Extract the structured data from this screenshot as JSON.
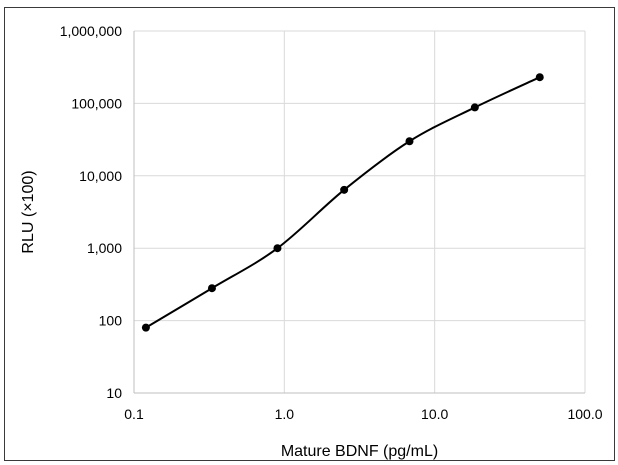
{
  "chart_data": {
    "type": "line",
    "title": "",
    "xlabel": "Mature BDNF (pg/mL)",
    "ylabel": "RLU (×100)",
    "x_scale": "log",
    "y_scale": "log",
    "xlim": [
      0.1,
      100.0
    ],
    "ylim": [
      10,
      1000000
    ],
    "x_ticks": [
      0.1,
      1.0,
      10.0,
      100.0
    ],
    "x_tick_labels": [
      "0.1",
      "1.0",
      "10.0",
      "100.0"
    ],
    "y_ticks": [
      10,
      100,
      1000,
      10000,
      100000,
      1000000
    ],
    "y_tick_labels": [
      "10",
      "100",
      "1,000",
      "10,000",
      "100,000",
      "1,000,000"
    ],
    "grid": true,
    "legend": "none",
    "smooth": true,
    "series": [
      {
        "x": [
          0.12,
          0.33,
          0.9,
          2.5,
          6.8,
          18.5,
          50
        ],
        "y": [
          80,
          280,
          1000,
          6400,
          30000,
          88000,
          230000
        ],
        "color": "#000000",
        "marker": "circle"
      }
    ]
  }
}
